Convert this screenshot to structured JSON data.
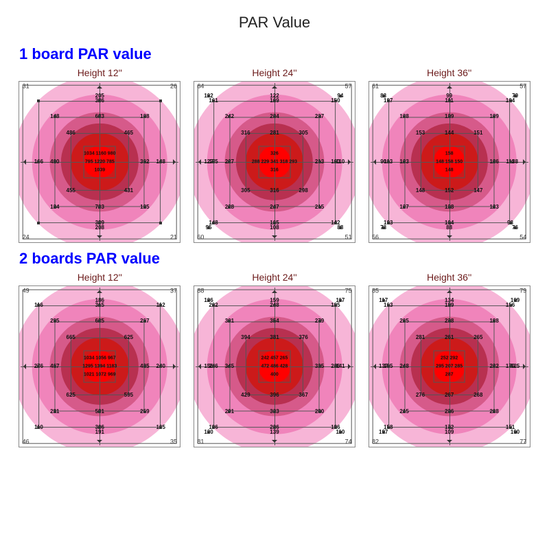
{
  "title": "PAR Value",
  "sections": [
    {
      "label": "1 board PAR value"
    },
    {
      "label": "2 boards PAR value"
    }
  ],
  "ring_colors": [
    "#f7b5d7",
    "#f084bb",
    "#d65a8a",
    "#b83050",
    "#cc1a1a",
    "#ff0000"
  ],
  "ring_radii_pct": [
    54,
    42,
    31,
    24,
    18,
    10
  ],
  "grid_sizes_pct": [
    96,
    76,
    56,
    36,
    20
  ],
  "grid_color": "#555555",
  "border_color": "#888888",
  "background": "#ffffff",
  "title_color": "#222222",
  "section_color": "#0000ff",
  "chart_title_color": "#6b1a1a",
  "charts": [
    [
      {
        "title": "Height 12''",
        "corners": {
          "tl": "31",
          "tr": "26",
          "bl": "24",
          "br": "21"
        },
        "bands": [
          {
            "t": "205",
            "b": "208",
            "l": "",
            "r": ""
          },
          {
            "t": "386",
            "b": "399",
            "l": "166",
            "r": "148"
          },
          {
            "t": "683",
            "b": "703",
            "l": "400",
            "r": "362",
            "tl": "148",
            "tr": "138",
            "bl": "134",
            "br": "125"
          },
          {
            "t": "",
            "b": "",
            "l": "",
            "r": "",
            "tl": "486",
            "tr": "465",
            "bl": "455",
            "br": "431"
          },
          {
            "center": [
              "1034 1160 980",
              "795 1220 785",
              "1039"
            ]
          }
        ]
      },
      {
        "title": "Height 24''",
        "corners": {
          "tl": "64",
          "tr": "57",
          "bl": "60",
          "br": "51"
        },
        "bands": [
          {
            "t": "122",
            "b": "108",
            "l": "127",
            "r": "110",
            "tl": "102",
            "tr": "94",
            "bl": "95",
            "br": "88"
          },
          {
            "t": "169",
            "b": "165",
            "l": "175",
            "r": "160",
            "tl": "161",
            "tr": "150",
            "bl": "148",
            "br": "142"
          },
          {
            "t": "234",
            "b": "247",
            "l": "227",
            "r": "213",
            "tl": "242",
            "tr": "227",
            "bl": "228",
            "br": "215"
          },
          {
            "t": "281",
            "b": "316",
            "l": "",
            "r": "",
            "tl": "316",
            "tr": "305",
            "bl": "305",
            "br": "298"
          },
          {
            "center": [
              "326",
              "288 229 341 318 293",
              "316"
            ]
          }
        ]
      },
      {
        "title": "Height 36''",
        "corners": {
          "tl": "61",
          "tr": "57",
          "bl": "56",
          "br": "54"
        },
        "bands": [
          {
            "t": "99",
            "b": "88",
            "l": "90",
            "r": "88",
            "tl": "83",
            "tr": "79",
            "bl": "73",
            "br": "76"
          },
          {
            "t": "111",
            "b": "104",
            "l": "113",
            "r": "111",
            "tl": "107",
            "tr": "104",
            "bl": "103",
            "br": "98"
          },
          {
            "t": "129",
            "b": "128",
            "l": "133",
            "r": "136",
            "tl": "138",
            "tr": "129",
            "bl": "137",
            "br": "133"
          },
          {
            "t": "144",
            "b": "152",
            "l": "",
            "r": "",
            "tl": "153",
            "tr": "151",
            "bl": "148",
            "br": "147"
          },
          {
            "center": [
              "158",
              "148 158 150",
              "148"
            ]
          }
        ]
      }
    ],
    [
      {
        "title": "Height 12''",
        "corners": {
          "tl": "49",
          "tr": "37",
          "bl": "46",
          "br": "35"
        },
        "bands": [
          {
            "t": "186",
            "b": "191",
            "l": "",
            "r": ""
          },
          {
            "t": "315",
            "b": "306",
            "l": "276",
            "r": "240",
            "tl": "116",
            "tr": "112",
            "bl": "110",
            "br": "105"
          },
          {
            "t": "625",
            "b": "591",
            "l": "467",
            "r": "435",
            "tl": "295",
            "tr": "267",
            "bl": "281",
            "br": "259"
          },
          {
            "t": "",
            "b": "",
            "l": "",
            "r": "",
            "tl": "665",
            "tr": "625",
            "bl": "625",
            "br": "595"
          },
          {
            "center": [
              "1034 1056 967",
              "1295 1394 1183",
              "1021 1072 969"
            ]
          }
        ]
      },
      {
        "title": "Height 24''",
        "corners": {
          "tl": "88",
          "tr": "75",
          "bl": "81",
          "br": "74"
        },
        "bands": [
          {
            "t": "159",
            "b": "139",
            "l": "156",
            "r": "141",
            "tl": "126",
            "tr": "117",
            "bl": "120",
            "br": "110"
          },
          {
            "t": "248",
            "b": "226",
            "l": "246",
            "r": "226",
            "tl": "202",
            "tr": "195",
            "bl": "196",
            "br": "186"
          },
          {
            "t": "354",
            "b": "333",
            "l": "345",
            "r": "325",
            "tl": "301",
            "tr": "279",
            "bl": "291",
            "br": "280"
          },
          {
            "t": "381",
            "b": "396",
            "l": "",
            "r": "",
            "tl": "394",
            "tr": "376",
            "bl": "429",
            "br": "367"
          },
          {
            "center": [
              "242 457 265",
              "472 486 428",
              "400"
            ]
          }
        ]
      },
      {
        "title": "Height 36''",
        "corners": {
          "tl": "85",
          "tr": "79",
          "bl": "82",
          "br": "77"
        },
        "bands": [
          {
            "t": "134",
            "b": "109",
            "l": "137",
            "r": "125",
            "tl": "117",
            "tr": "109",
            "bl": "107",
            "br": "100"
          },
          {
            "t": "189",
            "b": "172",
            "l": "195",
            "r": "179",
            "tl": "163",
            "tr": "156",
            "bl": "158",
            "br": "151"
          },
          {
            "t": "238",
            "b": "226",
            "l": "248",
            "r": "232",
            "tl": "205",
            "tr": "198",
            "bl": "215",
            "br": "208"
          },
          {
            "t": "261",
            "b": "267",
            "l": "",
            "r": "",
            "tl": "281",
            "tr": "265",
            "bl": "276",
            "br": "268"
          },
          {
            "center": [
              "252 292",
              "295 207 285",
              "287"
            ]
          }
        ]
      }
    ]
  ]
}
